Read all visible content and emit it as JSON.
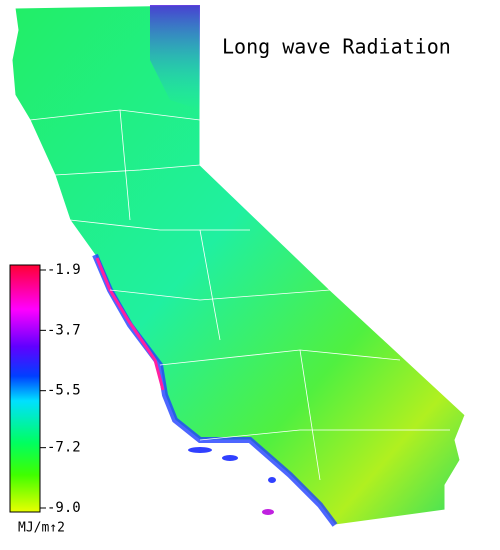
{
  "title": "Long wave Radiation",
  "legend": {
    "unit": "MJ/m↑2",
    "ticks": [
      -1.9,
      -3.7,
      -5.5,
      -7.2,
      {
        "value": -9,
        "label": "-9.0"
      }
    ]
  }
}
